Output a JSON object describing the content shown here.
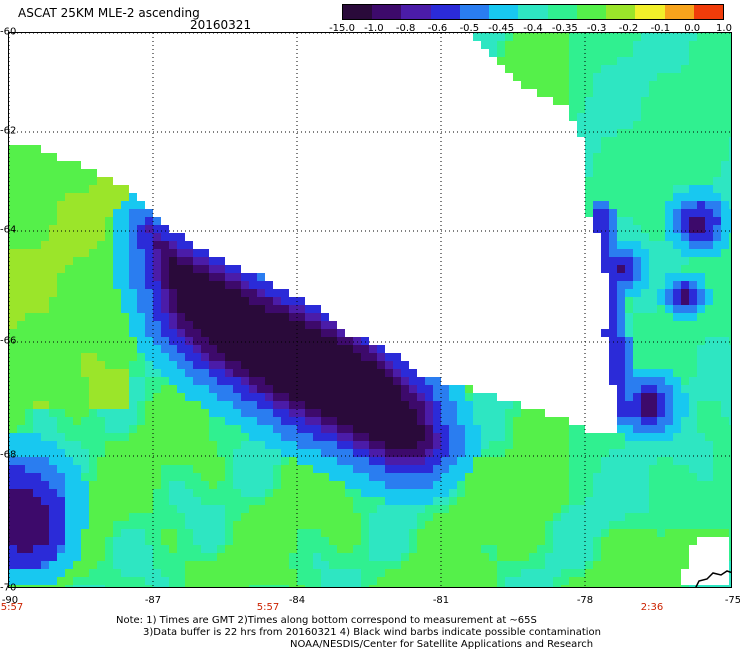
{
  "header": {
    "title": "ASCAT 25KM MLE-2 ascending",
    "date": "20160321"
  },
  "colorbar": {
    "labels": [
      "-15.0",
      "-1.0",
      "-0.8",
      "-0.6",
      "-0.5",
      "-0.45",
      "-0.4",
      "-0.35",
      "-0.3",
      "-0.2",
      "-0.1",
      "0.0",
      "1.0"
    ],
    "colors": [
      "#2a0a3a",
      "#3d0a6b",
      "#4b1ca8",
      "#2b2bd8",
      "#2a7df0",
      "#18c8f0",
      "#2ee6c2",
      "#30f090",
      "#55f04a",
      "#9be52a",
      "#f2f02a",
      "#f7a41c",
      "#f03c0a"
    ]
  },
  "map": {
    "lat_labels": [
      "-60",
      "-62",
      "-64",
      "-66",
      "-68",
      "-70"
    ],
    "lon_labels": [
      "-90",
      "-87",
      "-84",
      "-81",
      "-78",
      "-75"
    ],
    "time_labels": [
      "5:57",
      "5:57",
      "2:36"
    ],
    "land_color": "#ffffff",
    "coast_color": "#000000"
  },
  "footer": {
    "line1": "Note: 1) Times are GMT 2)Times along bottom correspond to measurement at ~65S",
    "line2": "3)Data buffer is 22 hrs from 20160321 4) Black wind barbs indicate possible contamination",
    "line3": "NOAA/NESDIS/Center for Satellite Applications and Research"
  }
}
